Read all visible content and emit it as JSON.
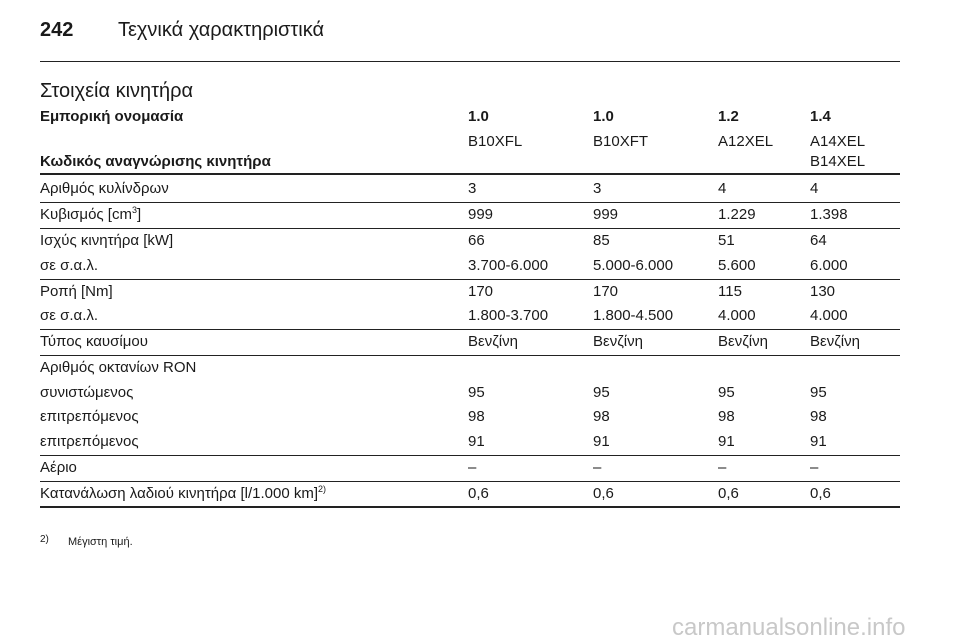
{
  "header": {
    "page_number": "242",
    "title": "Τεχνικά χαρακτηριστικά"
  },
  "section_title": "Στοιχεία κινητήρα",
  "table": {
    "name_label": "Εμπορική ονομασία",
    "names": [
      "1.0",
      "1.0",
      "1.2",
      "1.4"
    ],
    "code_label": "Κωδικός αναγνώρισης κινητήρα",
    "codes": [
      [
        "B10XFL"
      ],
      [
        "B10XFT"
      ],
      [
        "A12XEL"
      ],
      [
        "A14XEL",
        "B14XEL"
      ]
    ],
    "groups": [
      [
        {
          "label": "Αριθμός κυλίνδρων",
          "values": [
            "3",
            "3",
            "4",
            "4"
          ]
        }
      ],
      [
        {
          "label": "Κυβισμός [cm",
          "sup": "3",
          "label_end": "]",
          "values": [
            "999",
            "999",
            "1.229",
            "1.398"
          ]
        }
      ],
      [
        {
          "label": "Ισχύς κινητήρα [kW]",
          "values": [
            "66",
            "85",
            "51",
            "64"
          ]
        },
        {
          "label": "σε σ.α.λ.",
          "values": [
            "3.700-6.000",
            "5.000-6.000",
            "5.600",
            "6.000"
          ]
        }
      ],
      [
        {
          "label": "Ροπή [Nm]",
          "values": [
            "170",
            "170",
            "115",
            "130"
          ]
        },
        {
          "label": "σε σ.α.λ.",
          "values": [
            "1.800-3.700",
            "1.800-4.500",
            "4.000",
            "4.000"
          ]
        }
      ],
      [
        {
          "label": "Τύπος καυσίμου",
          "values": [
            "Βενζίνη",
            "Βενζίνη",
            "Βενζίνη",
            "Βενζίνη"
          ]
        }
      ],
      [
        {
          "label": "Αριθμός οκτανίων RON",
          "values": []
        },
        {
          "label": "συνιστώμενος",
          "values": [
            "95",
            "95",
            "95",
            "95"
          ]
        },
        {
          "label": "επιτρεπόμενος",
          "values": [
            "98",
            "98",
            "98",
            "98"
          ]
        },
        {
          "label": "επιτρεπόμενος",
          "values": [
            "91",
            "91",
            "91",
            "91"
          ]
        }
      ],
      [
        {
          "label": "Αέριο",
          "values": [
            "–",
            "–",
            "–",
            "–"
          ]
        }
      ],
      [
        {
          "label": "Κατανάλωση λαδιού κινητήρα [l/1.000 km]",
          "sup": "2)",
          "values": [
            "0,6",
            "0,6",
            "0,6",
            "0,6"
          ]
        }
      ]
    ]
  },
  "footnote": {
    "marker": "2)",
    "text": "Μέγιστη τιμή."
  },
  "watermark": "carmanualsonline.info"
}
